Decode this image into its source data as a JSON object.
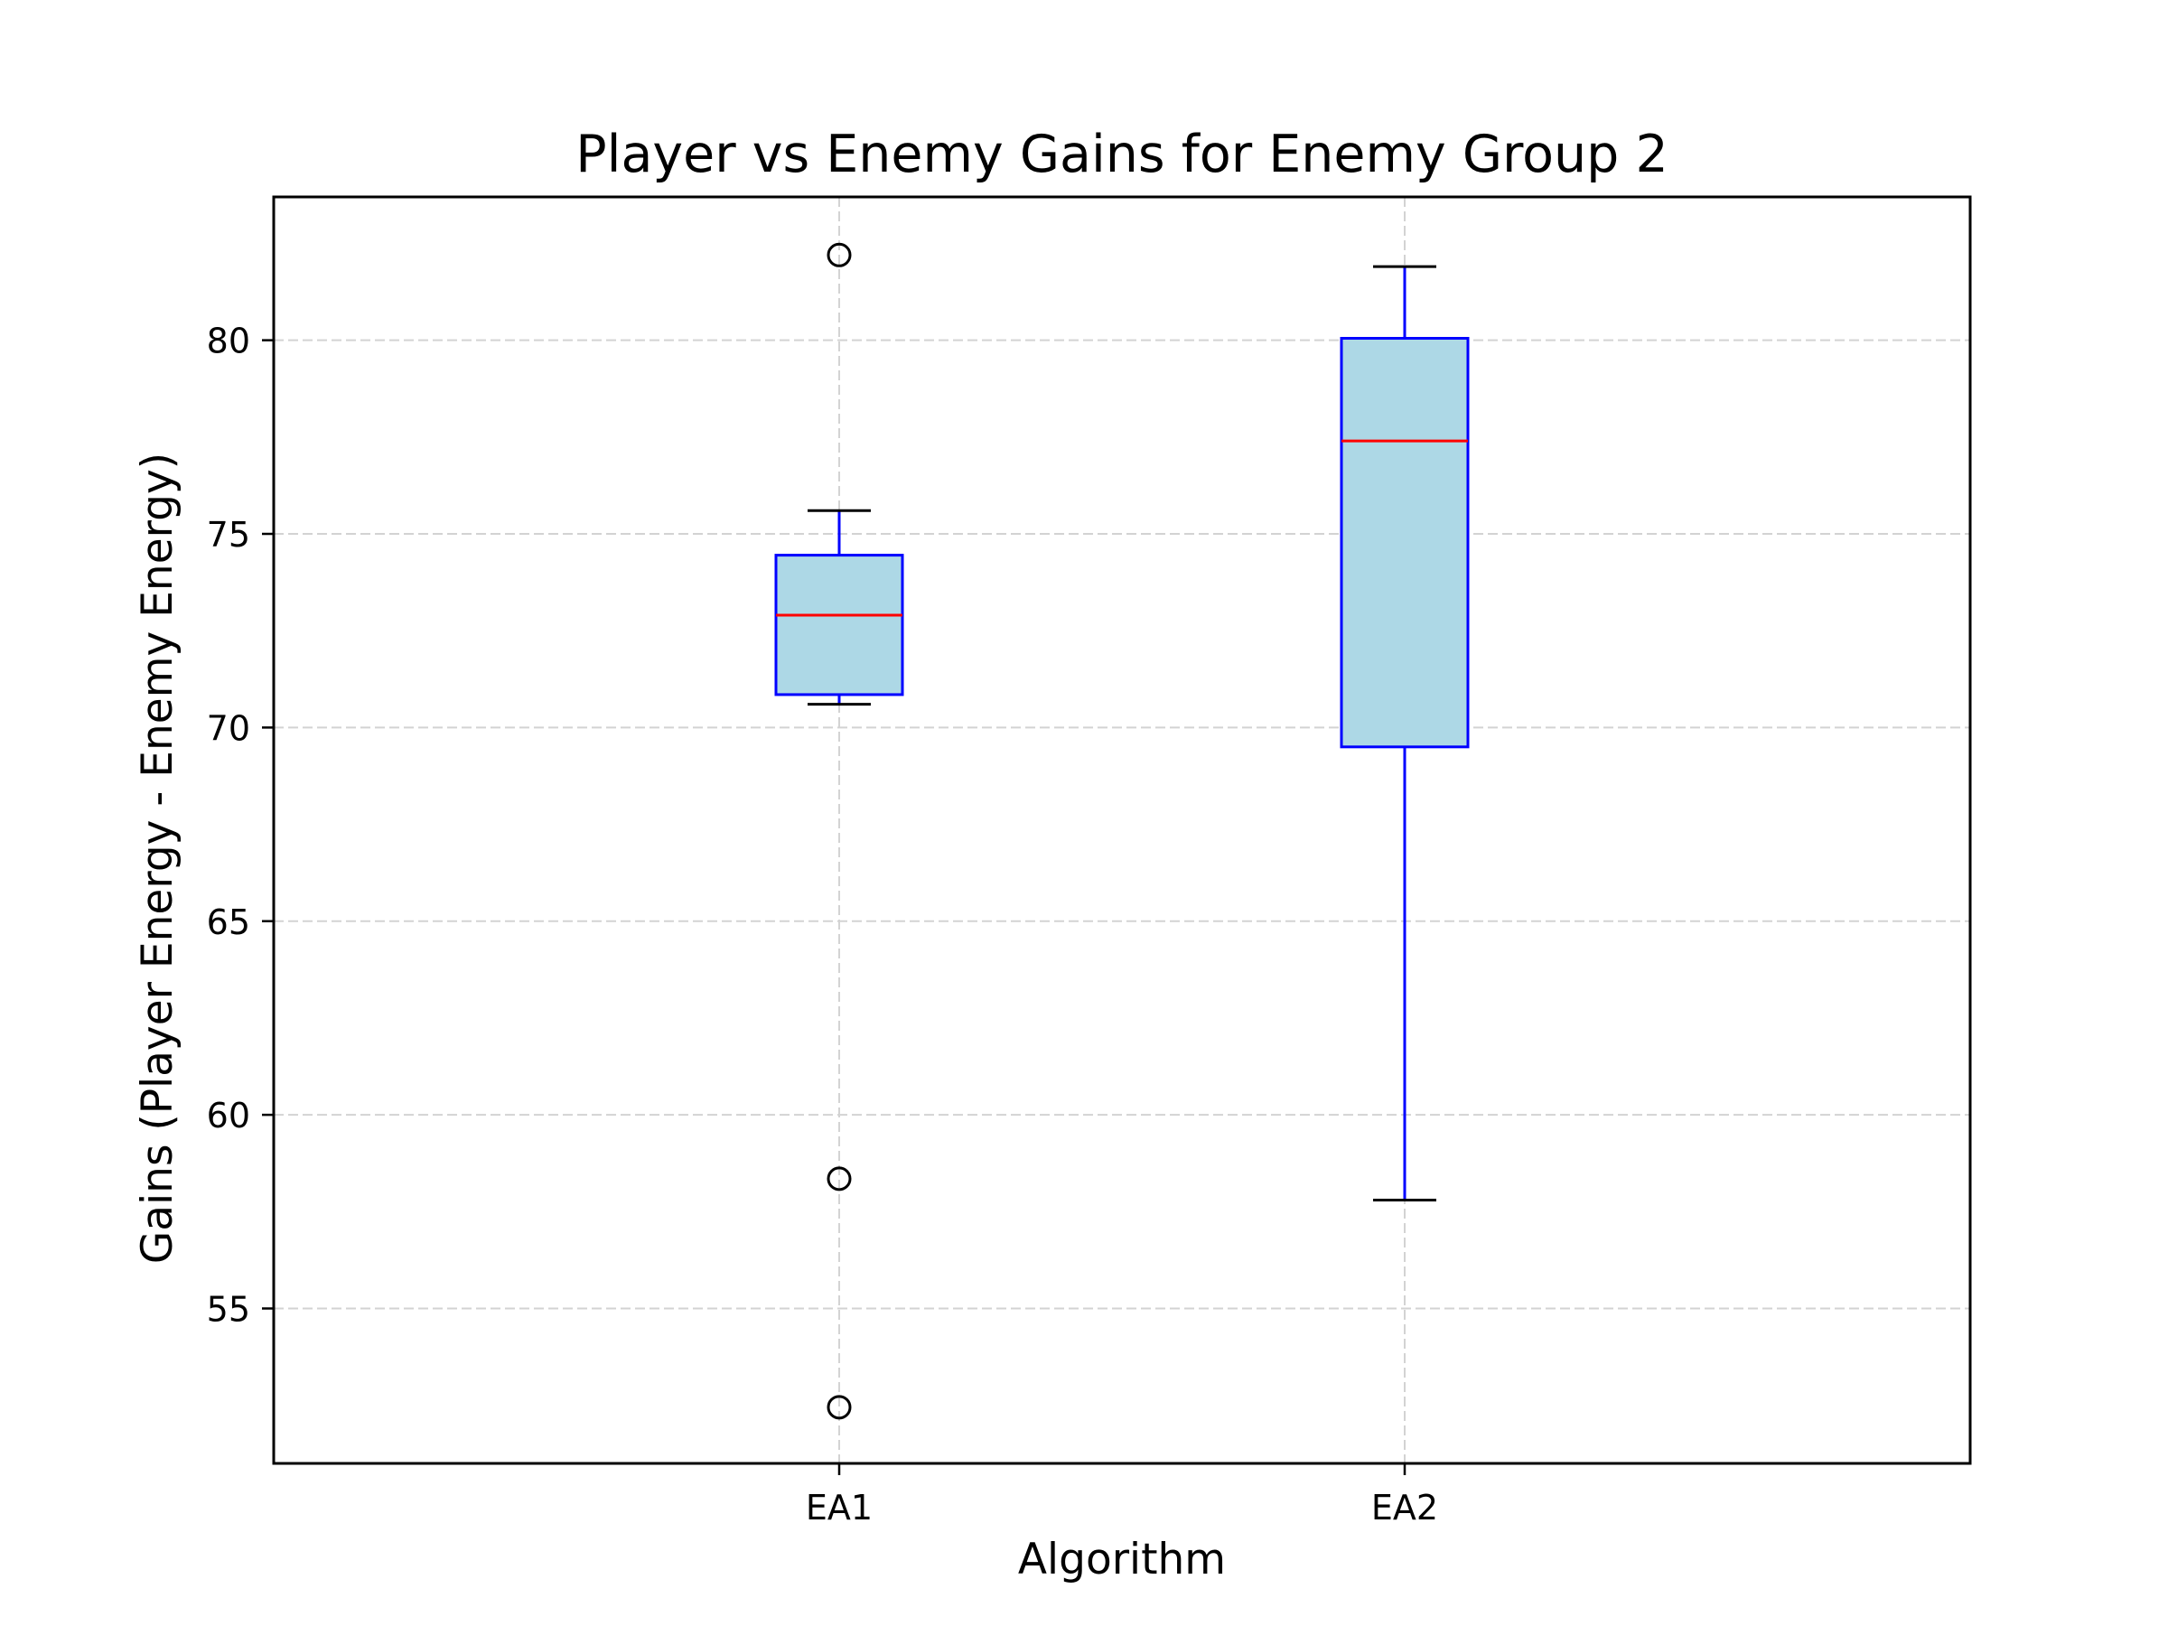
{
  "chart_data": {
    "type": "box",
    "title": "Player vs Enemy Gains for Enemy Group 2",
    "xlabel": "Algorithm",
    "ylabel": "Gains (Player Energy - Enemy Energy)",
    "ylim": [
      51.0,
      83.7
    ],
    "yticks": [
      55,
      60,
      65,
      70,
      75,
      80
    ],
    "grid": true,
    "categories": [
      "EA1",
      "EA2"
    ],
    "boxes": [
      {
        "label": "EA1",
        "whisker_low": 70.6,
        "q1": 70.85,
        "median": 72.9,
        "q3": 74.45,
        "whisker_high": 75.6,
        "fliers": [
          82.2,
          58.35,
          52.45
        ]
      },
      {
        "label": "EA2",
        "whisker_low": 57.8,
        "q1": 69.5,
        "median": 77.4,
        "q3": 80.05,
        "whisker_high": 81.9,
        "fliers": []
      }
    ],
    "colors": {
      "box_fill": "#add8e6",
      "box_edge": "#0000ff",
      "whisker": "#0000ff",
      "cap": "#000000",
      "median": "#ff0000",
      "flier_edge": "#000000",
      "grid": "#d3d3d3",
      "frame": "#000000"
    }
  }
}
